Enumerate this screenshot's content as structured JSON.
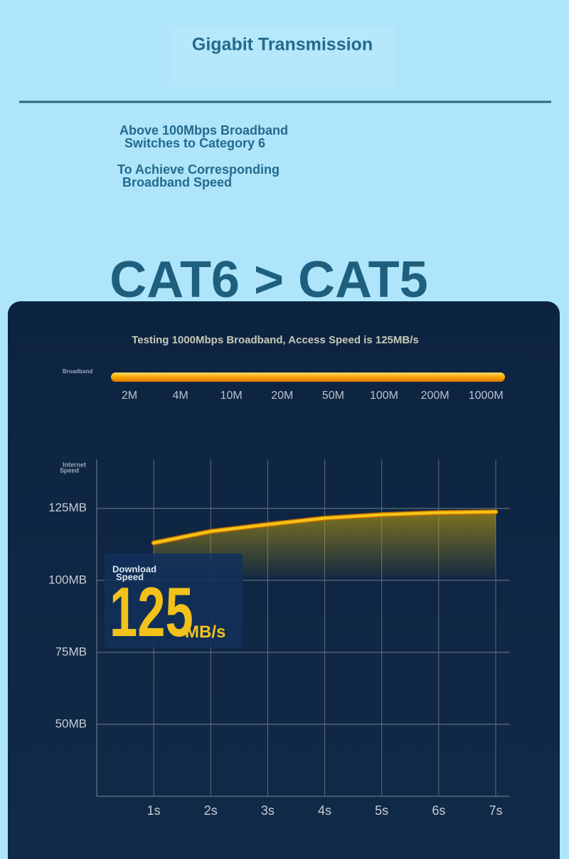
{
  "header": {
    "title": "Gigabit Transmission",
    "notes": [
      [
        "Above 100Mbps Broadband",
        "Switches to Category 6"
      ],
      [
        "To Achieve Corresponding",
        "Broadband Speed"
      ]
    ],
    "headline": "CAT6 > CAT5"
  },
  "panel": {
    "caption": "Testing 1000Mbps Broadband, Access Speed is 125MB/s",
    "broadband": {
      "label": "Broadband",
      "ticks": [
        "2M",
        "4M",
        "10M",
        "20M",
        "50M",
        "100M",
        "200M",
        "1000M"
      ]
    },
    "callout": {
      "label": [
        "Download",
        "Speed"
      ],
      "value": "125",
      "unit": "MB/s"
    }
  },
  "chart_data": {
    "type": "line",
    "y_label": [
      "Internet",
      "Speed"
    ],
    "x": [
      1,
      2,
      3,
      4,
      5,
      6,
      7
    ],
    "series": [
      {
        "name": "Download speed",
        "color": "#f5c518",
        "values": [
          113,
          117,
          119.4,
          121.6,
          122.8,
          123.5,
          123.8
        ]
      }
    ],
    "xlim": [
      0,
      7.25
    ],
    "xticks": [
      {
        "value": 1,
        "label": "1s"
      },
      {
        "value": 2,
        "label": "2s"
      },
      {
        "value": 3,
        "label": "3s"
      },
      {
        "value": 4,
        "label": "4s"
      },
      {
        "value": 5,
        "label": "5s"
      },
      {
        "value": 6,
        "label": "6s"
      },
      {
        "value": 7,
        "label": "7s"
      }
    ],
    "ylim": [
      25,
      142
    ],
    "yticks": [
      {
        "value": 50,
        "label": "50MB"
      },
      {
        "value": 75,
        "label": "75MB"
      },
      {
        "value": 100,
        "label": "100MB"
      },
      {
        "value": 125,
        "label": "125MB"
      }
    ],
    "grid": true
  }
}
